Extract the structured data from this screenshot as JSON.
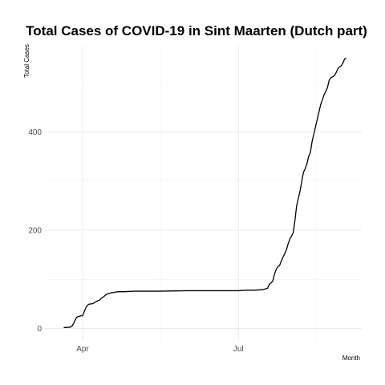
{
  "chart_data": {
    "type": "line",
    "title": "Total Cases of COVID-19 in Sint Maarten (Dutch part)",
    "xlabel": "Month",
    "ylabel": "Total Cases",
    "x_ticks": [
      {
        "label": "Apr",
        "date": "2020-04-01"
      },
      {
        "label": "Jul",
        "date": "2020-07-01"
      }
    ],
    "y_ticks": [
      {
        "label": "0",
        "value": 0
      },
      {
        "label": "200",
        "value": 200
      },
      {
        "label": "400",
        "value": 400
      }
    ],
    "xlim": [
      "2020-03-10",
      "2020-09-11"
    ],
    "ylim": [
      -25,
      575
    ],
    "grid": true,
    "line_color": "#000000",
    "series": [
      {
        "values": [
          [
            "2020-03-21",
            2
          ],
          [
            "2020-03-25",
            3
          ],
          [
            "2020-03-26",
            6
          ],
          [
            "2020-03-27",
            12
          ],
          [
            "2020-03-28",
            20
          ],
          [
            "2020-03-29",
            24
          ],
          [
            "2020-03-30",
            25
          ],
          [
            "2020-03-31",
            26
          ],
          [
            "2020-04-01",
            26
          ],
          [
            "2020-04-02",
            35
          ],
          [
            "2020-04-03",
            43
          ],
          [
            "2020-04-04",
            48
          ],
          [
            "2020-04-05",
            50
          ],
          [
            "2020-04-06",
            50
          ],
          [
            "2020-04-07",
            51
          ],
          [
            "2020-04-08",
            53
          ],
          [
            "2020-04-09",
            55
          ],
          [
            "2020-04-10",
            57
          ],
          [
            "2020-04-11",
            58
          ],
          [
            "2020-04-12",
            62
          ],
          [
            "2020-04-13",
            64
          ],
          [
            "2020-04-14",
            67
          ],
          [
            "2020-04-15",
            70
          ],
          [
            "2020-04-16",
            71
          ],
          [
            "2020-04-17",
            72
          ],
          [
            "2020-04-18",
            73
          ],
          [
            "2020-04-19",
            73
          ],
          [
            "2020-04-20",
            74
          ],
          [
            "2020-04-22",
            75
          ],
          [
            "2020-04-25",
            75
          ],
          [
            "2020-05-01",
            76
          ],
          [
            "2020-05-15",
            76
          ],
          [
            "2020-06-01",
            77
          ],
          [
            "2020-06-15",
            77
          ],
          [
            "2020-07-01",
            77
          ],
          [
            "2020-07-05",
            78
          ],
          [
            "2020-07-10",
            78
          ],
          [
            "2020-07-15",
            79
          ],
          [
            "2020-07-18",
            82
          ],
          [
            "2020-07-19",
            90
          ],
          [
            "2020-07-20",
            93
          ],
          [
            "2020-07-21",
            96
          ],
          [
            "2020-07-22",
            110
          ],
          [
            "2020-07-23",
            120
          ],
          [
            "2020-07-24",
            126
          ],
          [
            "2020-07-25",
            128
          ],
          [
            "2020-07-26",
            137
          ],
          [
            "2020-07-27",
            145
          ],
          [
            "2020-07-28",
            152
          ],
          [
            "2020-07-29",
            160
          ],
          [
            "2020-07-30",
            172
          ],
          [
            "2020-07-31",
            182
          ],
          [
            "2020-08-01",
            188
          ],
          [
            "2020-08-02",
            195
          ],
          [
            "2020-08-03",
            220
          ],
          [
            "2020-08-04",
            250
          ],
          [
            "2020-08-05",
            265
          ],
          [
            "2020-08-06",
            280
          ],
          [
            "2020-08-07",
            300
          ],
          [
            "2020-08-08",
            318
          ],
          [
            "2020-08-09",
            325
          ],
          [
            "2020-08-10",
            335
          ],
          [
            "2020-08-11",
            350
          ],
          [
            "2020-08-12",
            358
          ],
          [
            "2020-08-13",
            380
          ],
          [
            "2020-08-14",
            395
          ],
          [
            "2020-08-15",
            410
          ],
          [
            "2020-08-16",
            425
          ],
          [
            "2020-08-17",
            440
          ],
          [
            "2020-08-18",
            455
          ],
          [
            "2020-08-19",
            465
          ],
          [
            "2020-08-20",
            475
          ],
          [
            "2020-08-21",
            482
          ],
          [
            "2020-08-22",
            490
          ],
          [
            "2020-08-23",
            505
          ],
          [
            "2020-08-24",
            510
          ],
          [
            "2020-08-25",
            512
          ],
          [
            "2020-08-26",
            514
          ],
          [
            "2020-08-27",
            520
          ],
          [
            "2020-08-28",
            528
          ],
          [
            "2020-08-29",
            532
          ],
          [
            "2020-08-30",
            534
          ],
          [
            "2020-08-31",
            540
          ],
          [
            "2020-09-01",
            548
          ],
          [
            "2020-09-02",
            550
          ]
        ]
      }
    ]
  }
}
